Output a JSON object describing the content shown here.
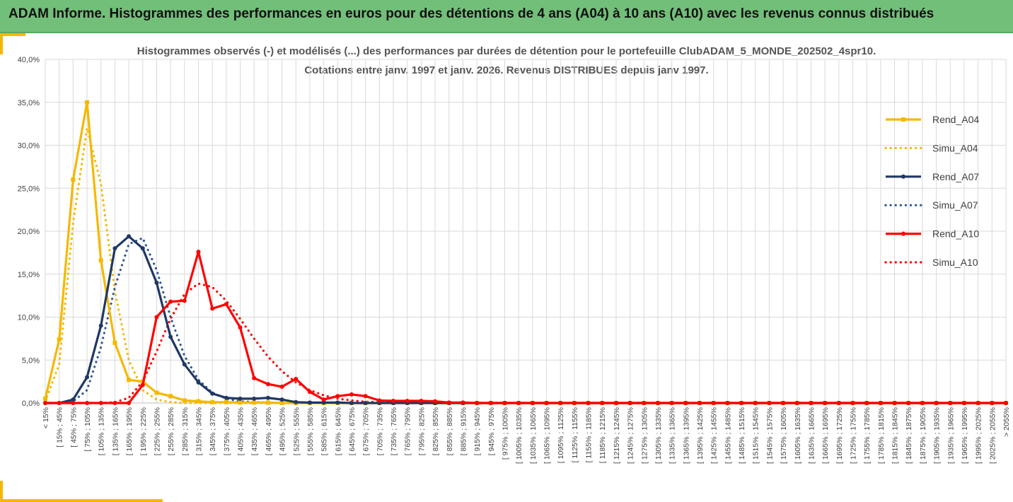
{
  "banner": {
    "title": "ADAM Informe. Histogrammes des performances en euros pour des détentions de 4 ans (A04) à 10 ans (A10) avec les revenus connus distribués"
  },
  "chart_data": {
    "type": "line",
    "title": "Histogrammes observés (-) et modélisés (...) des performances par durées de détention pour le portefeuille ClubADAM_5_MONDE_202502_4spr10.",
    "subtitle": "Cotations entre janv. 1997 et janv. 2026. Revenus DISTRIBUES depuis janv 1997.",
    "xlabel": "",
    "ylabel": "",
    "ylim": [
      0,
      40
    ],
    "y_ticks": [
      "0,0%",
      "5,0%",
      "10,0%",
      "15,0%",
      "20,0%",
      "25,0%",
      "30,0%",
      "35,0%",
      "40,0%"
    ],
    "grid": true,
    "legend_position": "right",
    "categories": [
      "< 15%",
      "[ 15% ; 45%",
      "[ 45% ; 75%",
      "[ 75% ; 105%",
      "[ 105% ; 135%",
      "[ 135% ; 165%",
      "[ 165% ; 195%",
      "[ 195% ; 225%",
      "[ 225% ; 255%",
      "[ 255% ; 285%",
      "[ 285% ; 315%",
      "[ 315% ; 345%",
      "[ 345% ; 375%",
      "[ 375% ; 405%",
      "[ 405% ; 435%",
      "[ 435% ; 465%",
      "[ 465% ; 495%",
      "[ 495% ; 525%",
      "[ 525% ; 555%",
      "[ 555% ; 585%",
      "[ 585% ; 615%",
      "[ 615% ; 645%",
      "[ 645% ; 675%",
      "[ 675% ; 705%",
      "[ 705% ; 735%",
      "[ 735% ; 765%",
      "[ 765% ; 795%",
      "[ 795% ; 825%",
      "[ 825% ; 855%",
      "[ 855% ; 885%",
      "[ 885% ; 915%",
      "[ 915% ; 945%",
      "[ 945% ; 975%",
      "[ 975% ; 1005%",
      "[ 1005% ; 1035%",
      "[ 1035% ; 1065%",
      "[ 1065% ; 1095%",
      "[ 1095% ; 1125%",
      "[ 1125% ; 1155%",
      "[ 1155% ; 1185%",
      "[ 1185% ; 1215%",
      "[ 1215% ; 1245%",
      "[ 1245% ; 1275%",
      "[ 1275% ; 1305%",
      "[ 1305% ; 1335%",
      "[ 1335% ; 1365%",
      "[ 1365% ; 1395%",
      "[ 1395% ; 1425%",
      "[ 1425% ; 1455%",
      "[ 1455% ; 1485%",
      "[ 1485% ; 1515%",
      "[ 1515% ; 1545%",
      "[ 1545% ; 1575%",
      "[ 1575% ; 1605%",
      "[ 1605% ; 1635%",
      "[ 1635% ; 1665%",
      "[ 1665% ; 1695%",
      "[ 1695% ; 1725%",
      "[ 1725% ; 1755%",
      "[ 1755% ; 1785%",
      "[ 1785% ; 1815%",
      "[ 1815% ; 1845%",
      "[ 1845% ; 1875%",
      "[ 1875% ; 1905%",
      "[ 1905% ; 1935%",
      "[ 1935% ; 1965%",
      "[ 1965% ; 1995%",
      "[ 1995% ; 2025%",
      "[ 2025% ; 2055%",
      "> 2055%"
    ],
    "series": [
      {
        "name": "Rend_A04",
        "color": "#f5b800",
        "style": "solid",
        "marker": "square",
        "values": [
          0.5,
          7.4,
          26.0,
          35.0,
          16.6,
          7.0,
          2.7,
          2.5,
          1.2,
          0.8,
          0.3,
          0.2,
          0.1,
          0.1,
          0.05,
          0.05,
          0.05,
          0.0,
          0.0,
          0.0,
          0.0,
          0.0,
          0.0,
          0.0,
          0.0,
          0.0,
          0.0,
          0.0,
          0.0,
          0.0,
          0.0,
          0.0,
          0.0,
          0.0,
          0.0,
          0.0,
          0.0,
          0.0,
          0.0,
          0.0,
          0.0,
          0.0,
          0.0,
          0.0,
          0.0,
          0.0,
          0.0,
          0.0,
          0.0,
          0.0,
          0.0,
          0.0,
          0.0,
          0.0,
          0.0,
          0.0,
          0.0,
          0.0,
          0.0,
          0.0,
          0.0,
          0.0,
          0.0,
          0.0,
          0.0,
          0.0,
          0.0,
          0.0,
          0.0,
          0.0
        ]
      },
      {
        "name": "Simu_A04",
        "color": "#f5b800",
        "style": "dotted",
        "marker": "none",
        "values": [
          0.2,
          4.5,
          21.0,
          32.0,
          25.5,
          13.0,
          5.0,
          1.5,
          0.4,
          0.1,
          0.0,
          0.0,
          0.0,
          0.0,
          0.0,
          0.0,
          0.0,
          0.0,
          0.0,
          0.0,
          0.0,
          0.0,
          0.0,
          0.0,
          0.0,
          0.0,
          0.0,
          0.0,
          0.0,
          0.0,
          0.0,
          0.0,
          0.0,
          0.0,
          0.0,
          0.0,
          0.0,
          0.0,
          0.0,
          0.0,
          0.0,
          0.0,
          0.0,
          0.0,
          0.0,
          0.0,
          0.0,
          0.0,
          0.0,
          0.0,
          0.0,
          0.0,
          0.0,
          0.0,
          0.0,
          0.0,
          0.0,
          0.0,
          0.0,
          0.0,
          0.0,
          0.0,
          0.0,
          0.0,
          0.0,
          0.0,
          0.0,
          0.0,
          0.0,
          0.0
        ]
      },
      {
        "name": "Rend_A07",
        "color": "#1f3864",
        "style": "solid",
        "marker": "circle",
        "values": [
          0.0,
          0.0,
          0.4,
          3.0,
          9.0,
          18.0,
          19.4,
          18.0,
          14.0,
          7.7,
          4.5,
          2.4,
          1.1,
          0.6,
          0.5,
          0.5,
          0.6,
          0.4,
          0.1,
          0.05,
          0.05,
          0.05,
          0.0,
          0.0,
          0.0,
          0.0,
          0.0,
          0.0,
          0.0,
          0.0,
          0.0,
          0.0,
          0.0,
          0.0,
          0.0,
          0.0,
          0.0,
          0.0,
          0.0,
          0.0,
          0.0,
          0.0,
          0.0,
          0.0,
          0.0,
          0.0,
          0.0,
          0.0,
          0.0,
          0.0,
          0.0,
          0.0,
          0.0,
          0.0,
          0.0,
          0.0,
          0.0,
          0.0,
          0.0,
          0.0,
          0.0,
          0.0,
          0.0,
          0.0,
          0.0,
          0.0,
          0.0,
          0.0,
          0.0,
          0.0
        ]
      },
      {
        "name": "Simu_A07",
        "color": "#2f5597",
        "style": "dotted",
        "marker": "none",
        "values": [
          0.0,
          0.0,
          0.2,
          1.5,
          6.5,
          13.5,
          18.5,
          19.2,
          15.5,
          10.0,
          5.5,
          2.7,
          1.2,
          0.5,
          0.2,
          0.1,
          0.05,
          0.0,
          0.0,
          0.0,
          0.0,
          0.0,
          0.0,
          0.0,
          0.0,
          0.0,
          0.0,
          0.0,
          0.0,
          0.0,
          0.0,
          0.0,
          0.0,
          0.0,
          0.0,
          0.0,
          0.0,
          0.0,
          0.0,
          0.0,
          0.0,
          0.0,
          0.0,
          0.0,
          0.0,
          0.0,
          0.0,
          0.0,
          0.0,
          0.0,
          0.0,
          0.0,
          0.0,
          0.0,
          0.0,
          0.0,
          0.0,
          0.0,
          0.0,
          0.0,
          0.0,
          0.0,
          0.0,
          0.0,
          0.0,
          0.0,
          0.0,
          0.0,
          0.0,
          0.0
        ]
      },
      {
        "name": "Rend_A10",
        "color": "#ff0000",
        "style": "solid",
        "marker": "circle",
        "values": [
          0.0,
          0.0,
          0.0,
          0.0,
          0.0,
          0.0,
          0.0,
          2.1,
          10.0,
          11.8,
          11.9,
          17.6,
          11.0,
          11.5,
          8.8,
          2.9,
          2.2,
          1.9,
          2.8,
          1.3,
          0.4,
          0.8,
          1.0,
          0.8,
          0.3,
          0.25,
          0.25,
          0.25,
          0.2,
          0.05,
          0.05,
          0.0,
          0.0,
          0.0,
          0.0,
          0.0,
          0.0,
          0.0,
          0.0,
          0.0,
          0.0,
          0.0,
          0.0,
          0.0,
          0.0,
          0.0,
          0.0,
          0.0,
          0.0,
          0.0,
          0.0,
          0.0,
          0.0,
          0.0,
          0.0,
          0.0,
          0.0,
          0.0,
          0.0,
          0.0,
          0.0,
          0.0,
          0.0,
          0.0,
          0.0,
          0.0,
          0.0,
          0.0,
          0.0,
          0.0
        ]
      },
      {
        "name": "Simu_A10",
        "color": "#ff0000",
        "style": "dotted",
        "marker": "none",
        "values": [
          0.0,
          0.0,
          0.0,
          0.0,
          0.0,
          0.1,
          0.6,
          2.5,
          6.0,
          9.8,
          12.7,
          13.9,
          13.5,
          11.9,
          9.8,
          7.5,
          5.4,
          3.7,
          2.4,
          1.5,
          0.9,
          0.5,
          0.3,
          0.15,
          0.1,
          0.05,
          0.0,
          0.0,
          0.0,
          0.0,
          0.0,
          0.0,
          0.0,
          0.0,
          0.0,
          0.0,
          0.0,
          0.0,
          0.0,
          0.0,
          0.0,
          0.0,
          0.0,
          0.0,
          0.0,
          0.0,
          0.0,
          0.0,
          0.0,
          0.0,
          0.0,
          0.0,
          0.0,
          0.0,
          0.0,
          0.0,
          0.0,
          0.0,
          0.0,
          0.0,
          0.0,
          0.0,
          0.0,
          0.0,
          0.0,
          0.0,
          0.0,
          0.0,
          0.0,
          0.0
        ]
      }
    ]
  }
}
